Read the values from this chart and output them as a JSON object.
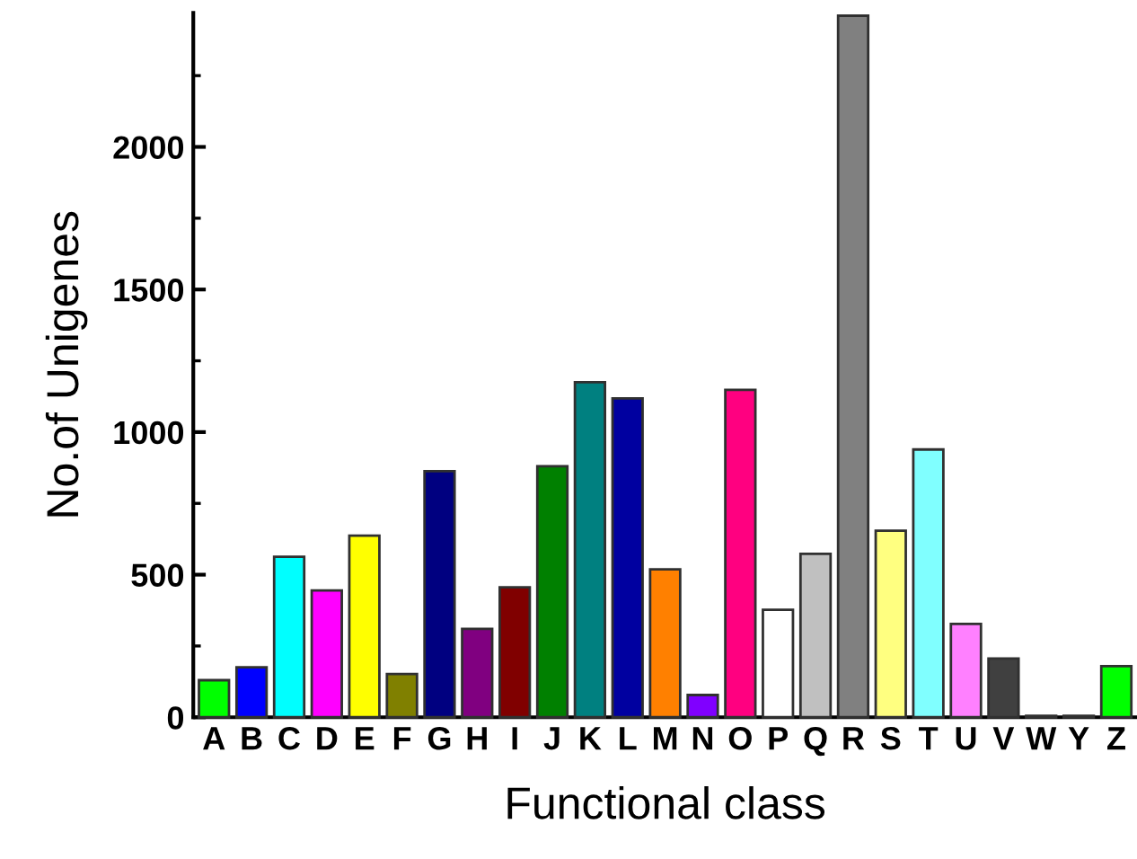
{
  "chart_data": {
    "type": "bar",
    "xlabel": "Functional class",
    "ylabel": "No.of Unigenes",
    "categories": [
      "A",
      "B",
      "C",
      "D",
      "E",
      "F",
      "G",
      "H",
      "I",
      "J",
      "K",
      "L",
      "M",
      "N",
      "O",
      "P",
      "Q",
      "R",
      "S",
      "T",
      "U",
      "V",
      "W",
      "Y",
      "Z"
    ],
    "values": [
      130,
      175,
      563,
      445,
      637,
      152,
      863,
      310,
      456,
      880,
      1175,
      1118,
      519,
      78,
      1148,
      377,
      573,
      2460,
      654,
      939,
      327,
      206,
      5,
      5,
      179
    ],
    "colors": [
      "#00ff00",
      "#0000ff",
      "#00ffff",
      "#ff00ff",
      "#ffff00",
      "#808000",
      "#000080",
      "#800080",
      "#800000",
      "#008000",
      "#008080",
      "#0000a0",
      "#ff8000",
      "#8000ff",
      "#ff0080",
      "#ffffff",
      "#c0c0c0",
      "#808080",
      "#ffff80",
      "#80ffff",
      "#ff80ff",
      "#404040",
      "#404040",
      "#404040",
      "#00ff00"
    ],
    "ylim": [
      0,
      2470
    ],
    "yticks": [
      0,
      {
        "value": 250,
        "label": null
      },
      500,
      {
        "value": 750,
        "label": null
      },
      1000,
      {
        "value": 1250,
        "label": null
      },
      1500,
      {
        "value": 1750,
        "label": null
      },
      2000,
      {
        "value": 2250,
        "label": null
      }
    ],
    "grid": false,
    "legend": false
  }
}
